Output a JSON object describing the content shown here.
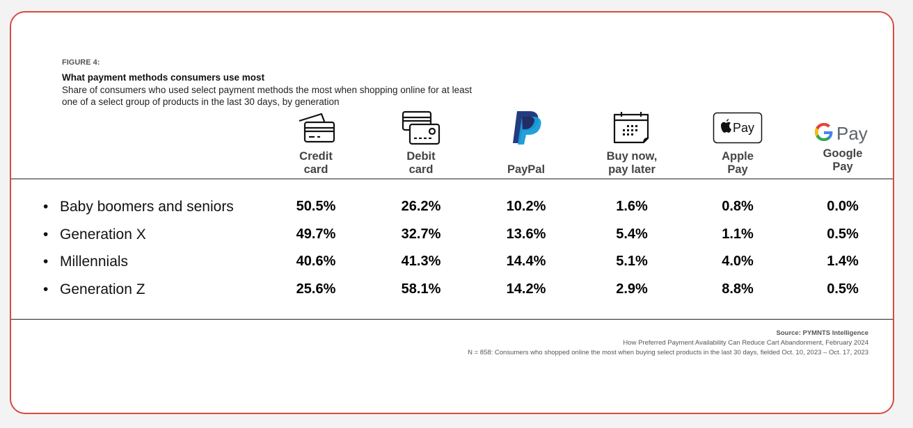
{
  "figure_label": "FIGURE 4:",
  "chart_data": {
    "type": "table",
    "title": "What payment methods consumers use most",
    "subtitle": "Share of consumers who used select payment methods the most when shopping online for at least one of a select group of products in the last 30 days, by generation",
    "columns": [
      {
        "label": "Credit card",
        "icon": "credit-card-icon"
      },
      {
        "label": "Debit card",
        "icon": "debit-card-icon"
      },
      {
        "label": "PayPal",
        "icon": "paypal-icon"
      },
      {
        "label": "Buy now, pay later",
        "icon": "calendar-icon"
      },
      {
        "label": "Apple Pay",
        "icon": "apple-pay-icon"
      },
      {
        "label": "Google Pay",
        "icon": "google-pay-icon"
      }
    ],
    "rows": [
      {
        "label": "Baby boomers and seniors",
        "values": [
          "50.5%",
          "26.2%",
          "10.2%",
          "1.6%",
          "0.8%",
          "0.0%"
        ]
      },
      {
        "label": "Generation X",
        "values": [
          "49.7%",
          "32.7%",
          "13.6%",
          "5.4%",
          "1.1%",
          "0.5%"
        ]
      },
      {
        "label": "Millennials",
        "values": [
          "40.6%",
          "41.3%",
          "14.4%",
          "5.1%",
          "4.0%",
          "1.4%"
        ]
      },
      {
        "label": "Generation Z",
        "values": [
          "25.6%",
          "58.1%",
          "14.2%",
          "2.9%",
          "8.8%",
          "0.5%"
        ]
      }
    ]
  },
  "logo_text": {
    "apple_pay": "Pay",
    "google_pay": "Pay"
  },
  "source": {
    "line1": "Source: PYMNTS Intelligence",
    "line2": "How Preferred Payment Availability Can Reduce Cart Abandonment, February 2024",
    "line3": "N = 858: Consumers who shopped online the most when buying select products in the last 30 days, fielded Oct. 10, 2023 – Oct. 17, 2023"
  },
  "colors": {
    "border": "#d9493f",
    "paypal_dark": "#253b80",
    "paypal_light": "#179bd7"
  }
}
